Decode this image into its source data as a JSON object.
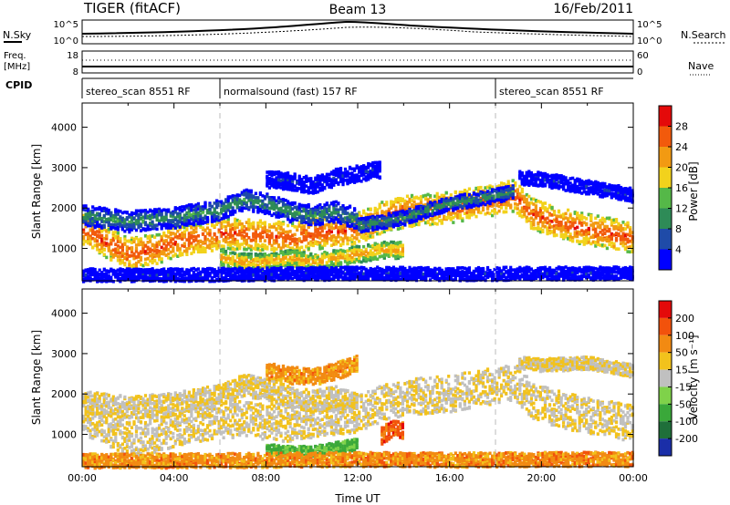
{
  "header": {
    "radar": "TIGER (fitACF)",
    "beam": "Beam 13",
    "date": "16/Feb/2011"
  },
  "top_panels": {
    "nsky": {
      "label": "N.Sky",
      "tick_top": "10^5",
      "tick_bottom": "10^0"
    },
    "nsearch": {
      "label": "N.Search",
      "tick_top": "10^5",
      "tick_bottom": "10^0"
    },
    "freq": {
      "label_line1": "Freq.",
      "label_line2": "[MHz]",
      "tick_top": "18",
      "tick_bottom": "8"
    },
    "nave": {
      "label": "Nave",
      "tick_top": "60",
      "tick_bottom": "0"
    },
    "cpid": {
      "label": "CPID"
    }
  },
  "cpid_segments": [
    {
      "start_hour": 0,
      "end_hour": 6,
      "label": "stereo_scan 8551 RF"
    },
    {
      "start_hour": 6,
      "end_hour": 18,
      "label": "normalsound (fast) 157 RF"
    },
    {
      "start_hour": 18,
      "end_hour": 24,
      "label": "stereo_scan 8551 RF"
    }
  ],
  "chart_data": [
    {
      "type": "heatmap",
      "name": "power",
      "ylabel": "Slant Range [km]",
      "xlabel": "",
      "xlim": [
        0,
        24
      ],
      "ylim": [
        200,
        4600
      ],
      "yticks": [
        "1000",
        "2000",
        "3000",
        "4000"
      ],
      "colorbar": {
        "label": "Power [dB]",
        "ticks": [
          "4",
          "8",
          "12",
          "16",
          "20",
          "24",
          "28"
        ],
        "colors": [
          "#0000ff",
          "#1f4ba8",
          "#2e8b57",
          "#55b848",
          "#f2d21c",
          "#f29a12",
          "#f25a0c",
          "#e40a0a"
        ]
      },
      "bands": [
        {
          "points": [
            [
              0,
              1500
            ],
            [
              1,
              1200
            ],
            [
              2,
              900
            ],
            [
              3,
              1000
            ],
            [
              4,
              1200
            ],
            [
              5,
              1300
            ],
            [
              6,
              1400
            ],
            [
              7,
              1400
            ],
            [
              8,
              1350
            ],
            [
              9,
              1300
            ],
            [
              10,
              1400
            ],
            [
              11,
              1450
            ],
            [
              12,
              1550
            ],
            [
              13,
              1800
            ],
            [
              14,
              1950
            ],
            [
              15,
              2000
            ],
            [
              16,
              2050
            ],
            [
              17,
              2150
            ],
            [
              18,
              2250
            ],
            [
              18.8,
              2350
            ],
            [
              19.5,
              1900
            ],
            [
              20.5,
              1700
            ],
            [
              21.5,
              1550
            ],
            [
              22.5,
              1450
            ],
            [
              23.5,
              1350
            ],
            [
              24,
              1300
            ]
          ],
          "width": 480,
          "level": 0.85
        },
        {
          "points": [
            [
              0,
              1850
            ],
            [
              2,
              1700
            ],
            [
              4,
              1800
            ],
            [
              6,
              2000
            ],
            [
              7,
              2250
            ],
            [
              8,
              2150
            ],
            [
              9,
              1950
            ],
            [
              10,
              1850
            ],
            [
              11,
              1950
            ],
            [
              12,
              1750
            ]
          ],
          "width": 320,
          "level": 0.35
        },
        {
          "points": [
            [
              6,
              800
            ],
            [
              7,
              700
            ],
            [
              8,
              700
            ],
            [
              9,
              800
            ],
            [
              10,
              700
            ],
            [
              11,
              800
            ],
            [
              12,
              900
            ],
            [
              13,
              1000
            ],
            [
              14,
              1000
            ]
          ],
          "width": 260,
          "level": 0.7
        },
        {
          "points": [
            [
              12,
              1600
            ],
            [
              13,
              1700
            ],
            [
              14,
              1800
            ],
            [
              15,
              2000
            ],
            [
              16,
              2150
            ],
            [
              17,
              2250
            ],
            [
              18,
              2350
            ],
            [
              18.8,
              2450
            ]
          ],
          "width": 220,
          "level": 0.35
        },
        {
          "points": [
            [
              8,
              2750
            ],
            [
              9,
              2700
            ],
            [
              10,
              2600
            ],
            [
              11,
              2800
            ],
            [
              12,
              2900
            ],
            [
              13,
              3000
            ]
          ],
          "width": 260,
          "level": 0.12
        },
        {
          "points": [
            [
              19,
              2800
            ],
            [
              20,
              2750
            ],
            [
              21,
              2650
            ],
            [
              22,
              2550
            ],
            [
              23,
              2450
            ],
            [
              24,
              2350
            ]
          ],
          "width": 220,
          "level": 0.12
        },
        {
          "points": [
            [
              0,
              380
            ],
            [
              4,
              380
            ],
            [
              8,
              400
            ],
            [
              12,
              420
            ],
            [
              16,
              400
            ],
            [
              20,
              420
            ],
            [
              24,
              420
            ]
          ],
          "width": 200,
          "level": 0.1
        }
      ]
    },
    {
      "type": "heatmap",
      "name": "velocity",
      "ylabel": "Slant Range [km]",
      "xlabel": "Time UT",
      "xlim": [
        0,
        24
      ],
      "ylim": [
        200,
        4600
      ],
      "xticks": [
        "00:00",
        "04:00",
        "08:00",
        "12:00",
        "16:00",
        "20:00",
        "00:00"
      ],
      "yticks": [
        "1000",
        "2000",
        "3000",
        "4000"
      ],
      "colorbar": {
        "label": "Velocity [m s⁻¹]",
        "ticks": [
          "200",
          "100",
          "50",
          "15",
          "-15",
          "-50",
          "-100",
          "-200"
        ],
        "colors": [
          "#1a2ea8",
          "#1f6f3a",
          "#3aa83a",
          "#7fd24a",
          "#c0c0c0",
          "#f2c21c",
          "#f28a12",
          "#f2520c",
          "#e40a0a"
        ]
      },
      "bands": [
        {
          "points": [
            [
              0,
              1500
            ],
            [
              1,
              1200
            ],
            [
              2,
              900
            ],
            [
              3,
              1000
            ],
            [
              4,
              1200
            ],
            [
              5,
              1300
            ],
            [
              6,
              1400
            ],
            [
              7,
              1400
            ],
            [
              8,
              1350
            ],
            [
              9,
              1300
            ],
            [
              10,
              1400
            ],
            [
              11,
              1450
            ],
            [
              12,
              1550
            ],
            [
              13,
              1800
            ],
            [
              14,
              1950
            ],
            [
              15,
              2000
            ],
            [
              16,
              2050
            ],
            [
              17,
              2150
            ],
            [
              18,
              2250
            ],
            [
              18.8,
              2350
            ],
            [
              19.5,
              1900
            ],
            [
              20.5,
              1700
            ],
            [
              21.5,
              1550
            ],
            [
              22.5,
              1450
            ],
            [
              23.5,
              1350
            ],
            [
              24,
              1300
            ]
          ],
          "width": 560,
          "level": 0.55
        },
        {
          "points": [
            [
              0,
              1850
            ],
            [
              2,
              1700
            ],
            [
              4,
              1800
            ],
            [
              6,
              2000
            ],
            [
              7,
              2250
            ],
            [
              8,
              2150
            ],
            [
              9,
              1950
            ],
            [
              10,
              1850
            ],
            [
              11,
              1950
            ],
            [
              12,
              1750
            ]
          ],
          "width": 340,
          "level": 0.55
        },
        {
          "points": [
            [
              8,
              650
            ],
            [
              9,
              600
            ],
            [
              10,
              600
            ],
            [
              11,
              700
            ],
            [
              12,
              800
            ]
          ],
          "width": 180,
          "level": 0.32
        },
        {
          "points": [
            [
              13,
              1000
            ],
            [
              13.5,
              1200
            ],
            [
              14,
              1100
            ]
          ],
          "width": 260,
          "level": 0.82
        },
        {
          "points": [
            [
              8,
              2600
            ],
            [
              9,
              2500
            ],
            [
              10,
              2450
            ],
            [
              11,
              2600
            ],
            [
              12,
              2800
            ]
          ],
          "width": 260,
          "level": 0.7
        },
        {
          "points": [
            [
              19,
              2800
            ],
            [
              20,
              2750
            ],
            [
              22,
              2800
            ],
            [
              24,
              2600
            ]
          ],
          "width": 200,
          "level": 0.55
        },
        {
          "points": [
            [
              0,
              380
            ],
            [
              4,
              380
            ],
            [
              8,
              400
            ],
            [
              12,
              420
            ],
            [
              16,
              400
            ],
            [
              20,
              420
            ],
            [
              24,
              420
            ]
          ],
          "width": 220,
          "level": 0.72
        }
      ]
    }
  ]
}
